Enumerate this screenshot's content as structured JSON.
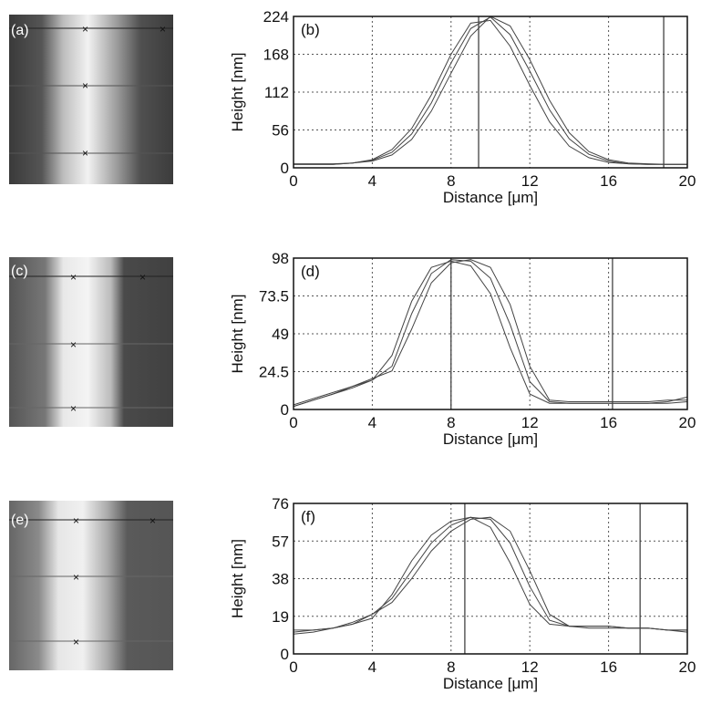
{
  "images": [
    {
      "label": "(a)"
    },
    {
      "label": "(c)"
    },
    {
      "label": "(e)"
    }
  ],
  "chart_data": [
    {
      "type": "line",
      "annotation": "(b)",
      "xlabel": "Distance [μm]",
      "ylabel": "Height [nm]",
      "x": [
        0,
        1,
        2,
        3,
        4,
        5,
        6,
        7,
        8,
        9,
        10,
        11,
        12,
        13,
        14,
        15,
        16,
        17,
        18,
        19,
        20
      ],
      "series": [
        {
          "color": "#444",
          "values": [
            5,
            5,
            5,
            7,
            12,
            27,
            58,
            108,
            168,
            214,
            218,
            180,
            122,
            68,
            32,
            15,
            8,
            6,
            5,
            5,
            5
          ]
        },
        {
          "color": "#444",
          "values": [
            5,
            5,
            5,
            7,
            11,
            23,
            50,
            96,
            155,
            206,
            223,
            197,
            143,
            86,
            43,
            20,
            10,
            6,
            5,
            5,
            5
          ]
        },
        {
          "color": "#444",
          "values": [
            6,
            6,
            6,
            7,
            10,
            19,
            42,
            84,
            140,
            195,
            224,
            210,
            160,
            100,
            52,
            24,
            12,
            7,
            6,
            5,
            5
          ]
        }
      ],
      "cursors": [
        9.4,
        18.8
      ],
      "xlim": [
        0,
        20
      ],
      "xticks": [
        0,
        4,
        8,
        12,
        16,
        20
      ],
      "ylim": [
        0,
        224
      ],
      "yticks": [
        0,
        56,
        112,
        168,
        224
      ],
      "grid": true
    },
    {
      "type": "line",
      "annotation": "(d)",
      "xlabel": "Distance [μm]",
      "ylabel": "Height [nm]",
      "x": [
        0,
        1,
        2,
        3,
        4,
        5,
        6,
        7,
        8,
        9,
        10,
        11,
        12,
        13,
        14,
        15,
        16,
        17,
        18,
        19,
        20
      ],
      "series": [
        {
          "color": "#444",
          "values": [
            2,
            6,
            10,
            15,
            19,
            35,
            70,
            92,
            96,
            93,
            75,
            40,
            10,
            4,
            4,
            4,
            4,
            4,
            4,
            4,
            5
          ]
        },
        {
          "color": "#444",
          "values": [
            2,
            6,
            10,
            14,
            19,
            28,
            62,
            88,
            97,
            96,
            85,
            55,
            18,
            5,
            4,
            4,
            4,
            4,
            4,
            5,
            8
          ]
        },
        {
          "color": "#444",
          "values": [
            3,
            7,
            11,
            15,
            20,
            25,
            52,
            82,
            95,
            97,
            92,
            68,
            28,
            6,
            5,
            5,
            5,
            5,
            5,
            6,
            6
          ]
        }
      ],
      "cursors": [
        8,
        16.2
      ],
      "xlim": [
        0,
        20
      ],
      "xticks": [
        0,
        4,
        8,
        12,
        16,
        20
      ],
      "ylim": [
        0,
        98
      ],
      "yticks": [
        0,
        24.5,
        49,
        73.5,
        98
      ],
      "grid": true
    },
    {
      "type": "line",
      "annotation": "(f)",
      "xlabel": "Distance [μm]",
      "ylabel": "Height [nm]",
      "x": [
        0,
        1,
        2,
        3,
        4,
        5,
        6,
        7,
        8,
        9,
        10,
        11,
        12,
        13,
        14,
        15,
        16,
        17,
        18,
        19,
        20
      ],
      "series": [
        {
          "color": "#444",
          "values": [
            12,
            12,
            13,
            15,
            18,
            30,
            47,
            60,
            67,
            69,
            64,
            46,
            25,
            15,
            14,
            14,
            14,
            13,
            13,
            12,
            12
          ]
        },
        {
          "color": "#444",
          "values": [
            10,
            11,
            13,
            15,
            20,
            28,
            42,
            56,
            65,
            69,
            68,
            56,
            34,
            17,
            14,
            14,
            14,
            13,
            13,
            12,
            11
          ]
        },
        {
          "color": "#444",
          "values": [
            11,
            12,
            13,
            16,
            20,
            26,
            38,
            52,
            62,
            68,
            69,
            62,
            42,
            20,
            14,
            13,
            13,
            13,
            13,
            12,
            12
          ]
        }
      ],
      "cursors": [
        8.7,
        17.6
      ],
      "xlim": [
        0,
        20
      ],
      "xticks": [
        0,
        4,
        8,
        12,
        16,
        20
      ],
      "ylim": [
        0,
        76
      ],
      "yticks": [
        0,
        19,
        38,
        57,
        76
      ],
      "grid": true
    }
  ]
}
